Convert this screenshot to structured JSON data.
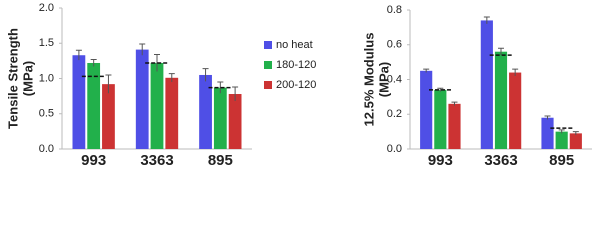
{
  "chart_data": [
    {
      "type": "bar",
      "y_label": [
        "Tensile Strength",
        "(MPa)"
      ],
      "categories": [
        "993",
        "3363",
        "895"
      ],
      "series": [
        {
          "name": "no heat",
          "color": "#4f4fe6",
          "values": [
            1.33,
            1.41,
            1.05
          ],
          "errors": [
            0.07,
            0.08,
            0.09
          ]
        },
        {
          "name": "180-120",
          "color": "#22b04b",
          "values": [
            1.22,
            1.22,
            0.87
          ],
          "errors": [
            0.05,
            0.12,
            0.08
          ]
        },
        {
          "name": "200-120",
          "color": "#cc3333",
          "values": [
            0.92,
            1.01,
            0.78
          ],
          "errors": [
            0.13,
            0.06,
            0.1
          ]
        }
      ],
      "dashed_values": [
        1.03,
        1.22,
        0.87
      ],
      "ylim": [
        0,
        2
      ],
      "yticks": [
        {
          "value": 0,
          "label": "0.0"
        },
        {
          "value": 0.5,
          "label": "0.5"
        },
        {
          "value": 1,
          "label": "1.0"
        },
        {
          "value": 1.5,
          "label": "1.5"
        },
        {
          "value": 2,
          "label": "2.0"
        }
      ],
      "grid": false,
      "legend": "right"
    },
    {
      "type": "bar",
      "y_label": [
        "12.5% Modulus",
        "(MPa)"
      ],
      "categories": [
        "993",
        "3363",
        "895"
      ],
      "series": [
        {
          "color": "#4f4fe6",
          "values": [
            0.45,
            0.74,
            0.18
          ],
          "errors": [
            0.01,
            0.02,
            0.01
          ]
        },
        {
          "color": "#22b04b",
          "values": [
            0.34,
            0.56,
            0.1
          ],
          "errors": [
            0.01,
            0.02,
            0.01
          ]
        },
        {
          "color": "#cc3333",
          "values": [
            0.26,
            0.44,
            0.09
          ],
          "errors": [
            0.01,
            0.02,
            0.01
          ]
        }
      ],
      "dashed_values": [
        0.34,
        0.54,
        0.12
      ],
      "ylim": [
        0,
        0.8
      ],
      "yticks": [
        {
          "value": 0,
          "label": "0.0"
        },
        {
          "value": 0.2,
          "label": "0.2"
        },
        {
          "value": 0.4,
          "label": "0.4"
        },
        {
          "value": 0.6,
          "label": "0.6"
        },
        {
          "value": 0.8,
          "label": "0.8"
        }
      ],
      "grid": false
    }
  ]
}
